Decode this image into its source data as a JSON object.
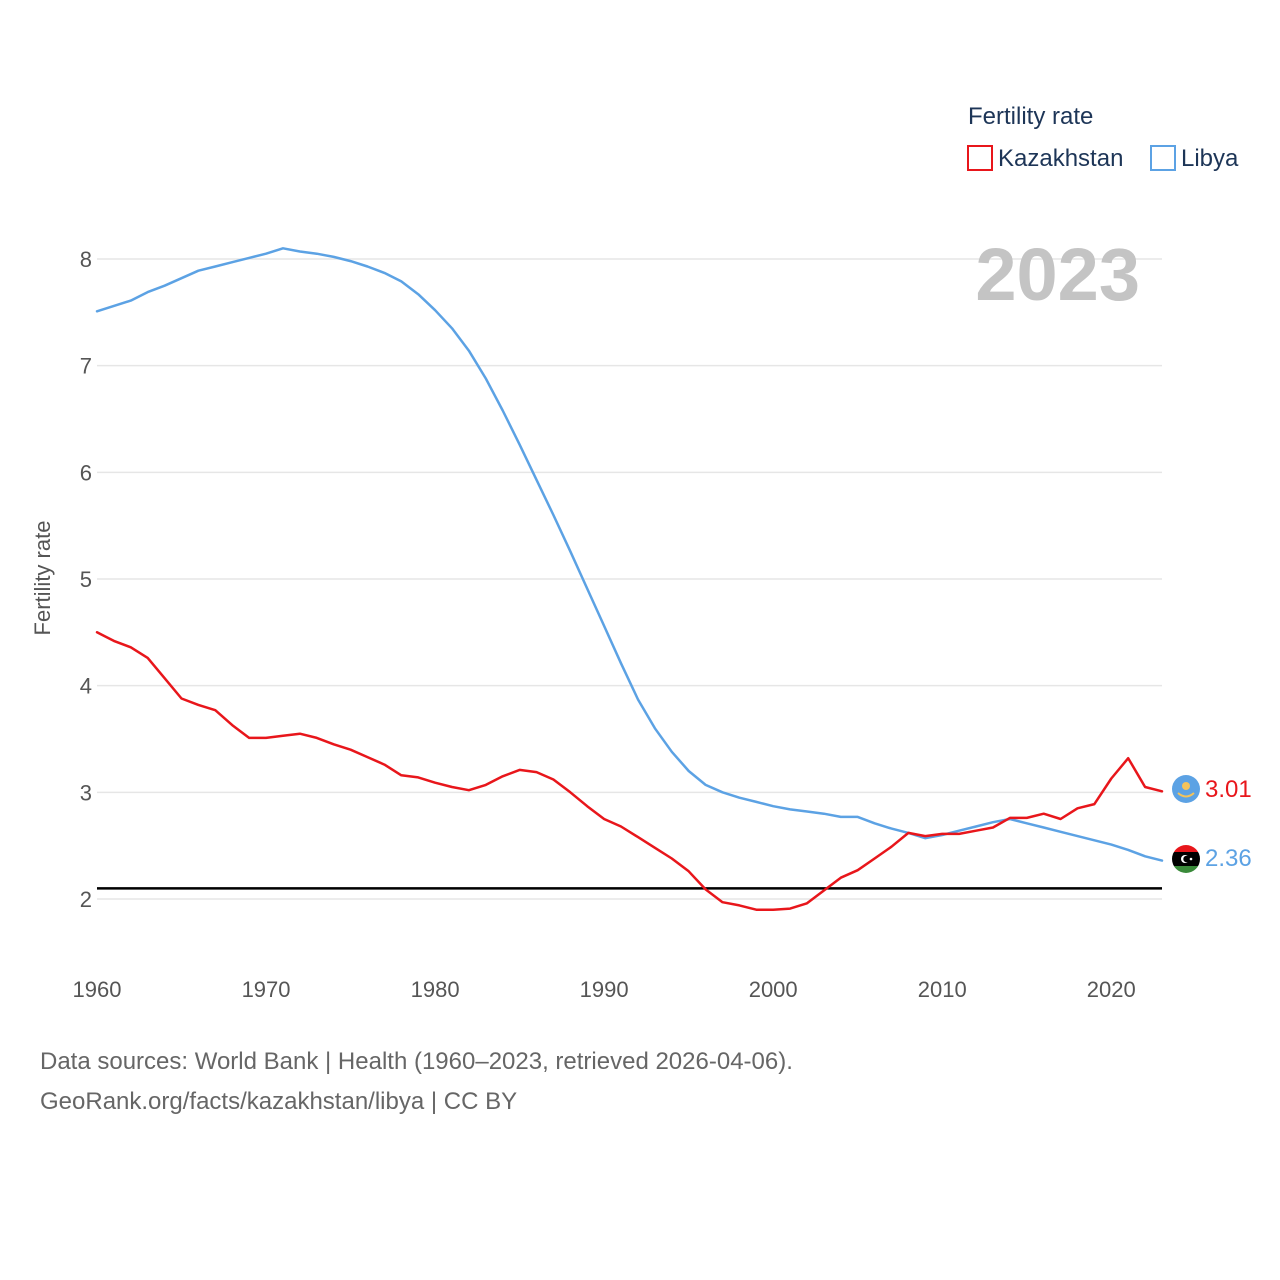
{
  "chart_data": {
    "type": "line",
    "title": "Fertility rate",
    "year_label": "2023",
    "xlabel": "",
    "ylabel": "Fertility rate",
    "xlim": [
      1960,
      2023
    ],
    "ylim": [
      1.5,
      8.3
    ],
    "x_ticks": [
      1960,
      1970,
      1980,
      1990,
      2000,
      2010,
      2020
    ],
    "y_ticks": [
      2,
      3,
      4,
      5,
      6,
      7,
      8
    ],
    "reference_line": 2.1,
    "legend_position": "top-right",
    "series": [
      {
        "name": "Kazakhstan",
        "color": "#e8161b",
        "end_label": "3.01",
        "x": [
          1960,
          1961,
          1962,
          1963,
          1964,
          1965,
          1966,
          1967,
          1968,
          1969,
          1970,
          1971,
          1972,
          1973,
          1974,
          1975,
          1976,
          1977,
          1978,
          1979,
          1980,
          1981,
          1982,
          1983,
          1984,
          1985,
          1986,
          1987,
          1988,
          1989,
          1990,
          1991,
          1992,
          1993,
          1994,
          1995,
          1996,
          1997,
          1998,
          1999,
          2000,
          2001,
          2002,
          2003,
          2004,
          2005,
          2006,
          2007,
          2008,
          2009,
          2010,
          2011,
          2012,
          2013,
          2014,
          2015,
          2016,
          2017,
          2018,
          2019,
          2020,
          2021,
          2022,
          2023
        ],
        "values": [
          4.5,
          4.42,
          4.36,
          4.26,
          4.07,
          3.88,
          3.82,
          3.77,
          3.63,
          3.51,
          3.51,
          3.53,
          3.55,
          3.51,
          3.45,
          3.4,
          3.33,
          3.26,
          3.16,
          3.14,
          3.09,
          3.05,
          3.02,
          3.07,
          3.15,
          3.21,
          3.19,
          3.12,
          3.0,
          2.87,
          2.75,
          2.68,
          2.58,
          2.48,
          2.38,
          2.26,
          2.09,
          1.97,
          1.94,
          1.9,
          1.9,
          1.91,
          1.96,
          2.08,
          2.2,
          2.27,
          2.38,
          2.49,
          2.62,
          2.59,
          2.61,
          2.61,
          2.64,
          2.67,
          2.76,
          2.76,
          2.8,
          2.75,
          2.85,
          2.89,
          3.13,
          3.32,
          3.05,
          3.01
        ]
      },
      {
        "name": "Libya",
        "color": "#5ca2e4",
        "end_label": "2.36",
        "x": [
          1960,
          1961,
          1962,
          1963,
          1964,
          1965,
          1966,
          1967,
          1968,
          1969,
          1970,
          1971,
          1972,
          1973,
          1974,
          1975,
          1976,
          1977,
          1978,
          1979,
          1980,
          1981,
          1982,
          1983,
          1984,
          1985,
          1986,
          1987,
          1988,
          1989,
          1990,
          1991,
          1992,
          1993,
          1994,
          1995,
          1996,
          1997,
          1998,
          1999,
          2000,
          2001,
          2002,
          2003,
          2004,
          2005,
          2006,
          2007,
          2008,
          2009,
          2010,
          2011,
          2012,
          2013,
          2014,
          2015,
          2016,
          2017,
          2018,
          2019,
          2020,
          2021,
          2022,
          2023
        ],
        "values": [
          7.51,
          7.56,
          7.61,
          7.69,
          7.75,
          7.82,
          7.89,
          7.93,
          7.97,
          8.01,
          8.05,
          8.1,
          8.07,
          8.05,
          8.02,
          7.98,
          7.93,
          7.87,
          7.79,
          7.67,
          7.52,
          7.35,
          7.14,
          6.88,
          6.58,
          6.26,
          5.93,
          5.6,
          5.26,
          4.91,
          4.56,
          4.21,
          3.87,
          3.6,
          3.38,
          3.2,
          3.07,
          3.0,
          2.95,
          2.91,
          2.87,
          2.84,
          2.82,
          2.8,
          2.77,
          2.77,
          2.71,
          2.66,
          2.62,
          2.57,
          2.6,
          2.64,
          2.68,
          2.72,
          2.75,
          2.71,
          2.67,
          2.63,
          2.59,
          2.55,
          2.51,
          2.46,
          2.4,
          2.36
        ]
      }
    ]
  },
  "footer": {
    "line1": "Data sources: World Bank | Health (1960–2023, retrieved 2026-04-06).",
    "line2": "GeoRank.org/facts/kazakhstan/libya | CC BY"
  }
}
